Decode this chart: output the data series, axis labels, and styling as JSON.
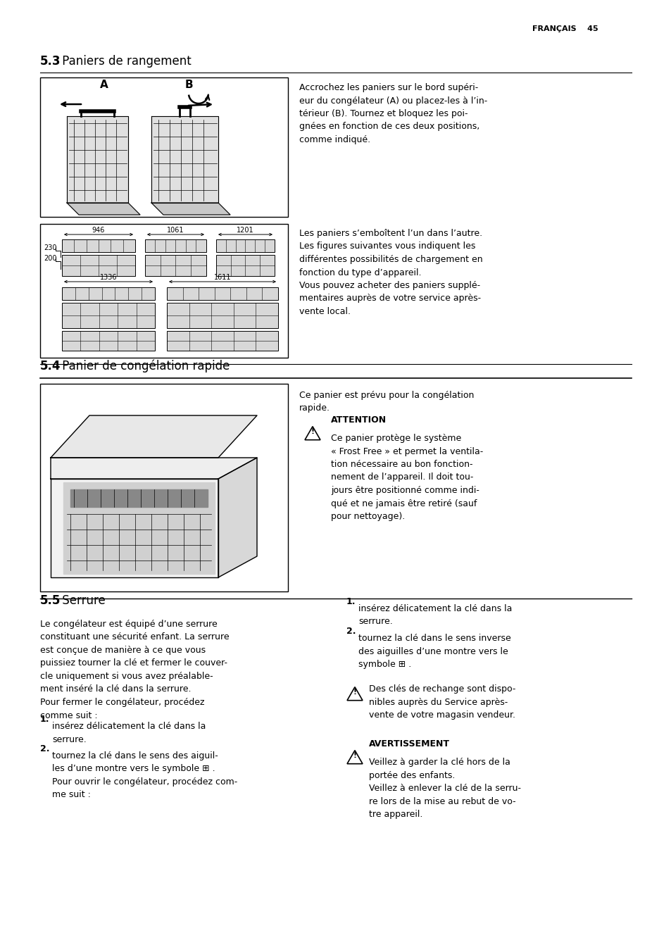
{
  "page_header_right": "FRANÇAIS    45",
  "bg_color": "#ffffff",
  "section_53_bold": "5.3",
  "section_53_title": " Paniers de rangement",
  "section_54_bold": "5.4",
  "section_54_title": " Panier de congélation rapide",
  "section_55_bold": "5.5",
  "section_55_title": " Serrure",
  "text_53_right": "Accrochez les paniers sur le bord supéri-\neur du congélateur (A) ou placez-les à l’in-\ntérieur (B). Tournez et bloquez les poi-\ngnées en fonction de ces deux positions,\ncomme indiqué.",
  "text_53_right2": "Les paniers s’emboîtent l’un dans l’autre.\nLes figures suivantes vous indiquent les\ndifférentes possibilités de chargement en\nfonction du type d’appareil.\nVous pouvez acheter des paniers supplé-\nmentaires auprès de votre service après-\nvente local.",
  "text_54_right1": "Ce panier est prévu pour la congélation\nrapide.",
  "attention_label": "ATTENTION",
  "text_attention": "Ce panier protège le système\n« Frost Free » et permet la ventila-\ntion nécessaire au bon fonction-\nnement de l’appareil. Il doit tou-\njours être positionné comme indi-\nqué et ne jamais être retiré (sauf\npour nettoyage).",
  "text_55_left_intro": "Le congélateur est équipé d’une serrure\nconstituant une sécurité enfant. La serrure\nest conçue de manière à ce que vous\npuissiez tourner la clé et fermer le couver-\ncle uniquement si vous avez préalable-\nment inséré la clé dans la serrure.\nPour fermer le congélateur, procédez\ncomme suit :",
  "text_55_left_1b": "insérez délicatement la clé dans la\nserrure.",
  "text_55_left_2b": "tournez la clé dans le sens des aiguil-\nles d’une montre vers le symbole ⊞ .\nPour ouvrir le congélateur, procédez com-\nme suit :",
  "text_55_right_1b": "insérez délicatement la clé dans la\nserrure.",
  "text_55_right_2b": "tournez la clé dans le sens inverse\ndes aiguilles d’une montre vers le\nsymbole ⊞ .",
  "attention2_text": "Des clés de rechange sont dispo-\nnibles auprès du Service après-\nvente de votre magasin vendeur.",
  "warning_label": "AVERTISSEMENT",
  "warning_text": "Veillez à garder la clé hors de la\nportée des enfants.\nVeillez à enlever la clé de la serru-\nre lors de la mise au rebut de vo-\ntre appareil.",
  "dim_946": "946",
  "dim_1061": "1061",
  "dim_1201": "1201",
  "dim_1336": "1336",
  "dim_1611": "1611",
  "dim_230": "230",
  "dim_200": "200",
  "label_A": "A",
  "label_B": "B"
}
